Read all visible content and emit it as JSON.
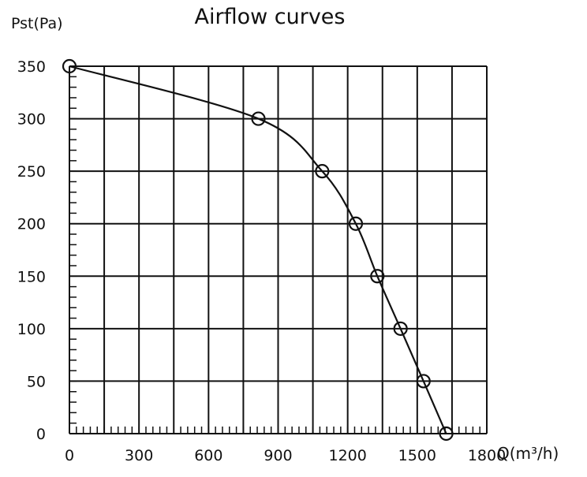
{
  "chart_data": {
    "type": "line",
    "title": "Airflow curves",
    "xlabel": "Q(m³/h)",
    "ylabel": "Pst(Pa)",
    "xlim": [
      0,
      1800
    ],
    "ylim": [
      0,
      350
    ],
    "x_ticks": [
      "0",
      "300",
      "600",
      "900",
      "1200",
      "1500",
      "1800"
    ],
    "y_ticks": [
      "0",
      "50",
      "100",
      "150",
      "200",
      "250",
      "300",
      "350"
    ],
    "grid": true,
    "series": [
      {
        "name": "Airflow curve",
        "color": "#111111",
        "x": [
          0,
          815,
          1090,
          1235,
          1328,
          1428,
          1527,
          1625
        ],
        "y": [
          350,
          300,
          250,
          200,
          150,
          100,
          50,
          0
        ]
      }
    ]
  }
}
